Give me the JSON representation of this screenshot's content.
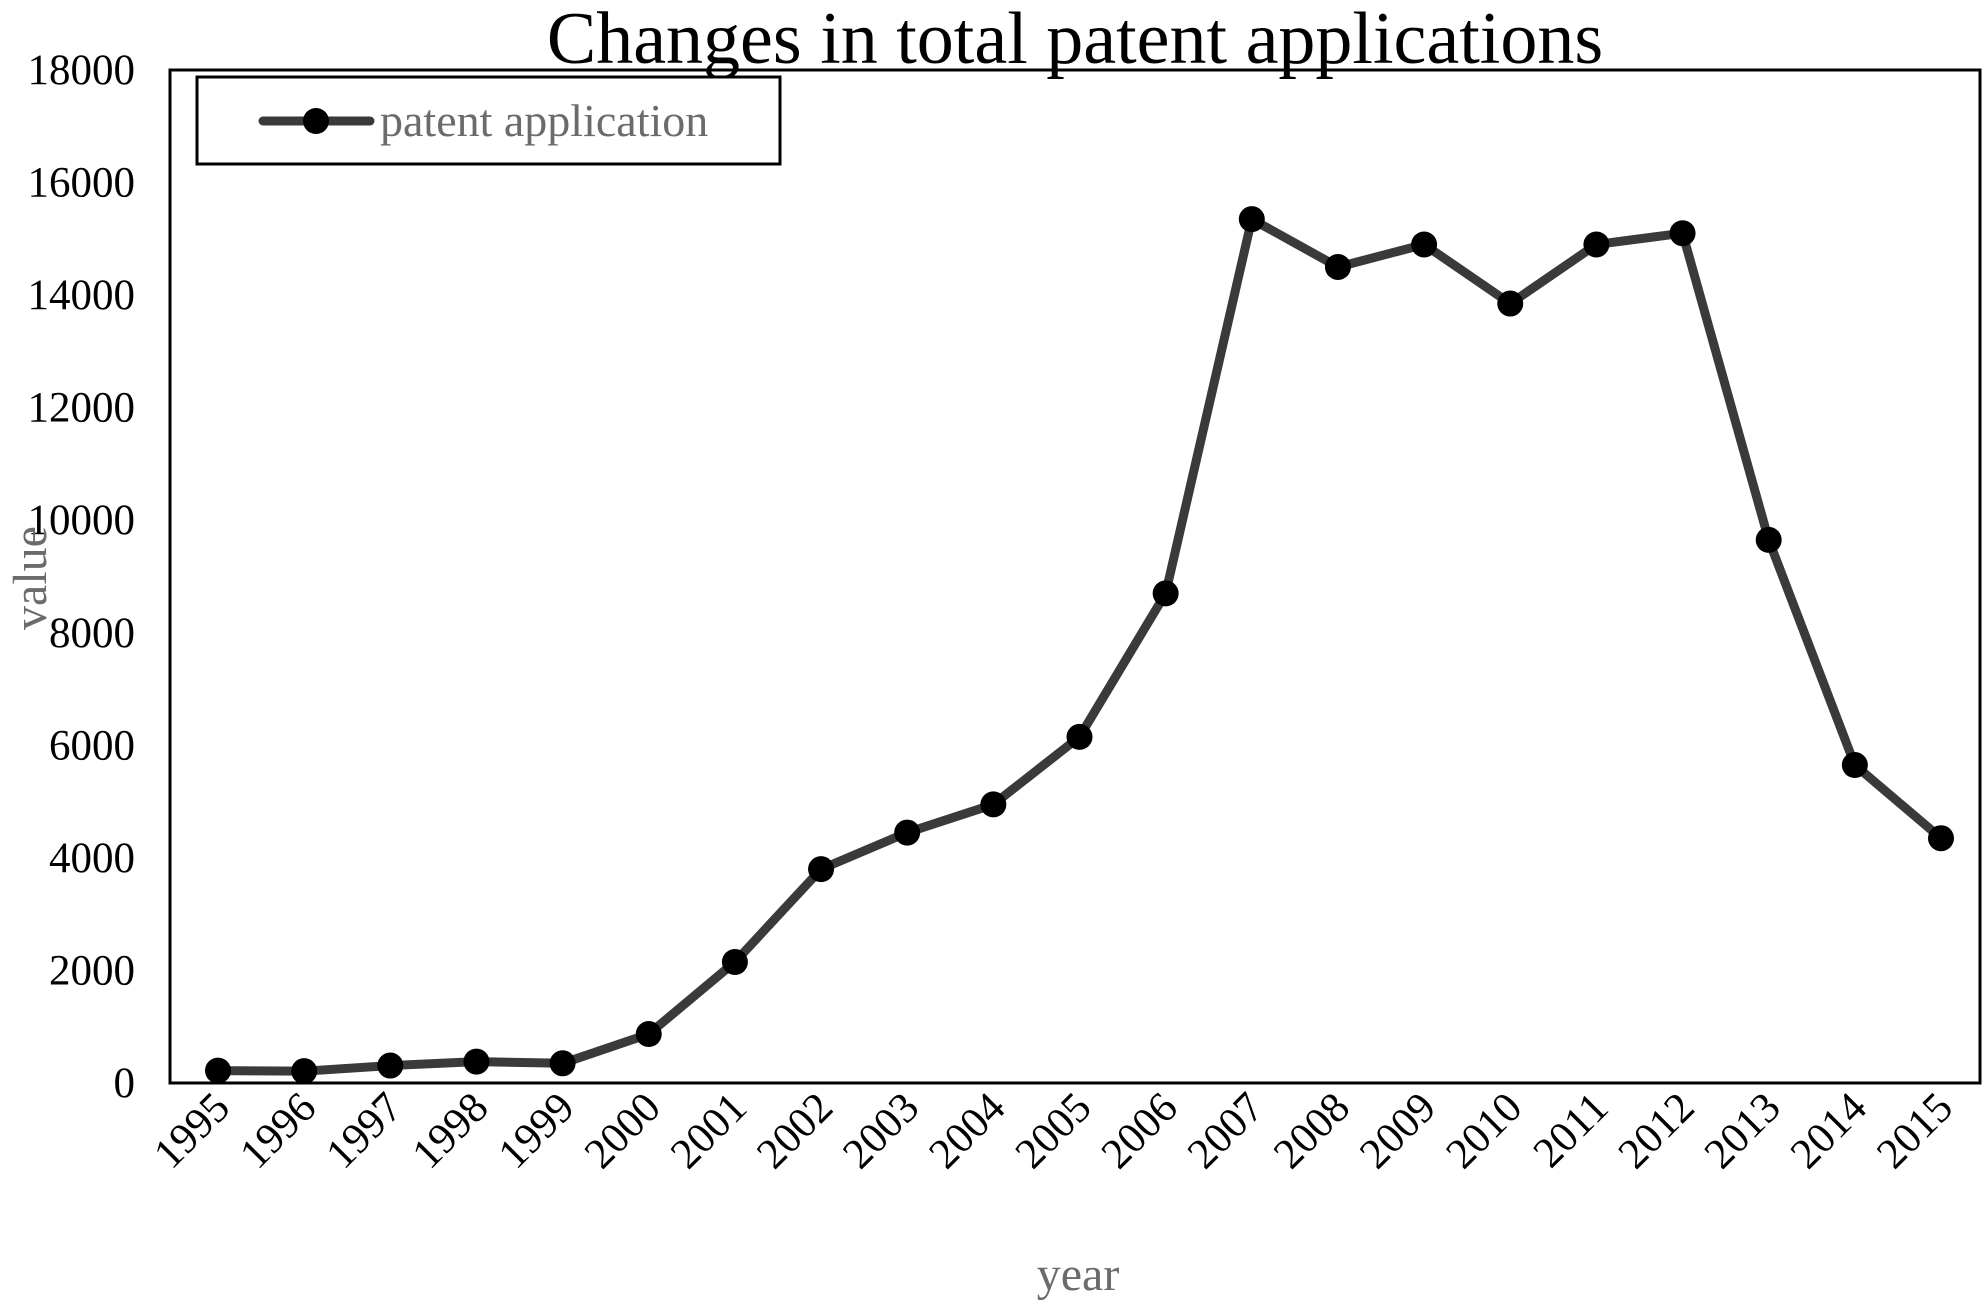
{
  "chart_data": {
    "type": "line",
    "title": "Changes in total patent applications",
    "xlabel": "year",
    "ylabel": "value",
    "categories": [
      "1995",
      "1996",
      "1997",
      "1998",
      "1999",
      "2000",
      "2001",
      "2002",
      "2003",
      "2004",
      "2005",
      "2006",
      "2007",
      "2008",
      "2009",
      "2010",
      "2011",
      "2012",
      "2013",
      "2014",
      "2015"
    ],
    "y_ticks": [
      "0",
      "2000",
      "4000",
      "6000",
      "8000",
      "10000",
      "12000",
      "14000",
      "16000",
      "18000"
    ],
    "ylim": [
      0,
      18000
    ],
    "series": [
      {
        "name": "patent application",
        "values": [
          220,
          210,
          310,
          380,
          350,
          870,
          2150,
          3800,
          4450,
          4950,
          6150,
          8700,
          15350,
          14500,
          14900,
          13850,
          14900,
          15100,
          9650,
          5650,
          4350
        ]
      }
    ],
    "grid": false,
    "legend_position": "top-left",
    "colors": {
      "line": "#3a3a3a",
      "marker": "#000000",
      "frame": "#000000"
    }
  }
}
